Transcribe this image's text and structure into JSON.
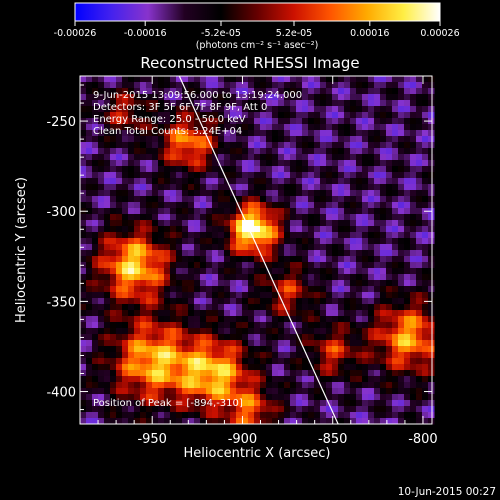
{
  "colorbar": {
    "tick_labels": [
      "-0.00026",
      "-0.00016",
      "-5.2e-05",
      "5.2e-05",
      "0.00016",
      "0.00026"
    ],
    "tick_values": [
      -0.00026,
      -0.00016,
      -5.2e-05,
      5.2e-05,
      0.00016,
      0.00026
    ],
    "range": [
      -0.00026,
      0.00026
    ],
    "units_label": "(photons cm⁻² s⁻¹ asec⁻²)",
    "colors": [
      "#0000ff",
      "#4422ee",
      "#8833cc",
      "#220022",
      "#000000",
      "#660000",
      "#cc1100",
      "#ff5500",
      "#ffaa00",
      "#ffee44",
      "#ffffff"
    ]
  },
  "chart_data": {
    "type": "heatmap",
    "title": "Reconstructed RHESSI Image",
    "xlabel": "Heliocentric X (arcsec)",
    "ylabel": "Heliocentric Y (arcsec)",
    "xlim": [
      -990,
      -795
    ],
    "ylim": [
      -418,
      -225
    ],
    "xticks": [
      -950,
      -900,
      -850,
      -800
    ],
    "yticks": [
      -250,
      -300,
      -350,
      -400
    ],
    "annotations": [
      "9-Jun-2015 13:09:56.000 to 13:19:24.000",
      "Detectors: 3F 5F 6F 7F 8F 9F, Att 0",
      "Energy Range: 25.0 - 50.0 keV",
      "Clean     Total Counts: 3.24E+04"
    ],
    "peak_label": "Position of Peak = [-894,-310]",
    "peak": [
      -894,
      -310
    ],
    "limb_line": [
      [
        -935,
        -225
      ],
      [
        -847,
        -418
      ]
    ],
    "sources": [
      {
        "x": -894,
        "y": -310,
        "sigma": 10,
        "amp": 1.0
      },
      {
        "x": -960,
        "y": -330,
        "sigma": 14,
        "amp": 0.8
      },
      {
        "x": -950,
        "y": -383,
        "sigma": 16,
        "amp": 0.75
      },
      {
        "x": -930,
        "y": -262,
        "sigma": 11,
        "amp": 0.65
      },
      {
        "x": -915,
        "y": -390,
        "sigma": 14,
        "amp": 0.75
      },
      {
        "x": -875,
        "y": -345,
        "sigma": 10,
        "amp": 0.45
      },
      {
        "x": -808,
        "y": -370,
        "sigma": 14,
        "amp": 0.7
      },
      {
        "x": -850,
        "y": -378,
        "sigma": 10,
        "amp": 0.45
      },
      {
        "x": -965,
        "y": -245,
        "sigma": 9,
        "amp": 0.4
      },
      {
        "x": -895,
        "y": -412,
        "sigma": 10,
        "amp": 0.5
      }
    ]
  },
  "timestamp": "10-Jun-2015 00:27"
}
